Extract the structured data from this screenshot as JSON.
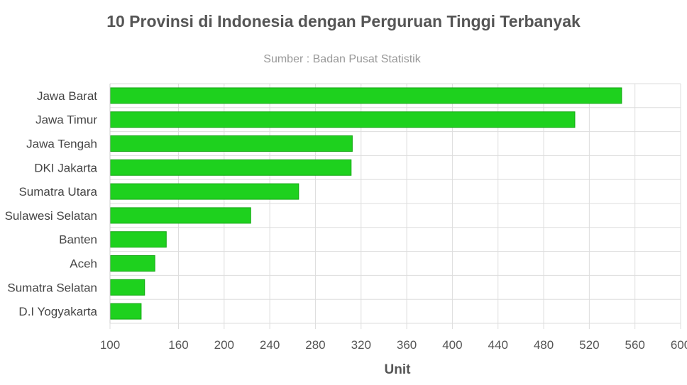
{
  "chart_data": {
    "type": "bar",
    "orientation": "horizontal",
    "title": "10 Provinsi di Indonesia dengan Perguruan Tinggi Terbanyak",
    "subtitle": "Sumber : Badan Pusat Statistik",
    "xlabel": "Unit",
    "ylabel": "",
    "categories": [
      "Jawa Barat",
      "Jawa Timur",
      "Jawa Tengah",
      "DKI Jakarta",
      "Sumatra Utara",
      "Sulawesi Selatan",
      "Banten",
      "Aceh",
      "Sumatra Selatan",
      "D.I Yogyakarta"
    ],
    "values": [
      548,
      507,
      312,
      311,
      265,
      223,
      149,
      139,
      130,
      127
    ],
    "xlim": [
      100,
      600
    ],
    "xticks": [
      100,
      160,
      200,
      240,
      280,
      320,
      360,
      400,
      440,
      480,
      520,
      560,
      600
    ],
    "grid": true,
    "legend": "none",
    "bar_color": "#1ed11e"
  }
}
